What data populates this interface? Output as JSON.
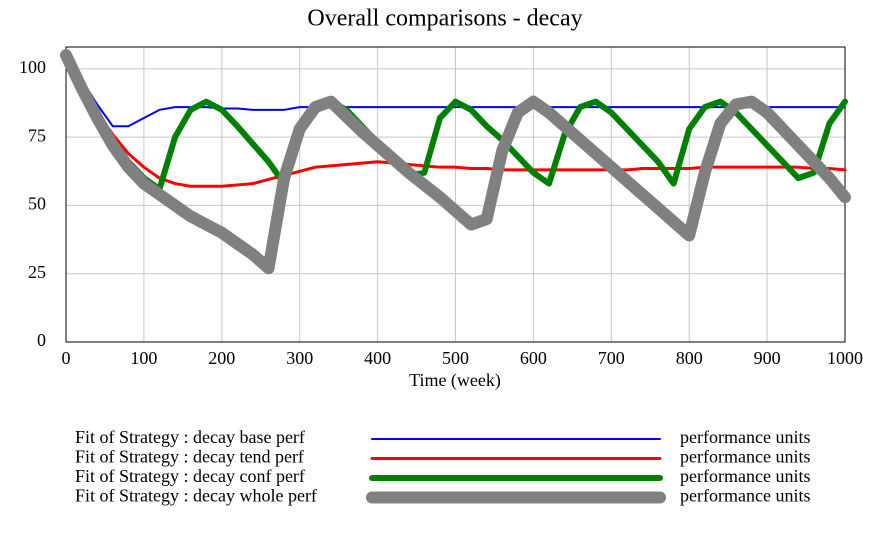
{
  "chart_data": {
    "type": "line",
    "title": "Overall comparisons - decay",
    "x_label": "Time (week)",
    "x": [
      0,
      20,
      40,
      60,
      80,
      100,
      120,
      140,
      160,
      180,
      200,
      220,
      240,
      260,
      280,
      300,
      320,
      340,
      360,
      380,
      400,
      420,
      440,
      460,
      480,
      500,
      520,
      540,
      560,
      580,
      600,
      620,
      640,
      660,
      680,
      700,
      720,
      740,
      760,
      780,
      800,
      820,
      840,
      860,
      880,
      900,
      920,
      940,
      960,
      980,
      1000
    ],
    "xlim": [
      0,
      1000
    ],
    "xticks": [
      0,
      100,
      200,
      300,
      400,
      500,
      600,
      700,
      800,
      900,
      1000
    ],
    "ylim": [
      0,
      108
    ],
    "yticks": [
      0,
      25,
      50,
      75,
      100
    ],
    "grid": true,
    "series": [
      {
        "name": "Fit of Strategy : decay base perf",
        "units": "performance units",
        "color": "#0000ff",
        "width": 2,
        "values": [
          105,
          96,
          87,
          79,
          79,
          82,
          85,
          86,
          86,
          86,
          85.5,
          85.5,
          85,
          85,
          85,
          86,
          86,
          86,
          86,
          86,
          86,
          86,
          86,
          86,
          86,
          86,
          86,
          86,
          86,
          86,
          86,
          86,
          86,
          86,
          86,
          86,
          86,
          86,
          86,
          86,
          86,
          86,
          86,
          86,
          86,
          86,
          86,
          86,
          86,
          86,
          86
        ]
      },
      {
        "name": "Fit of Strategy : decay tend perf",
        "units": "performance units",
        "color": "#ff0000",
        "width": 3,
        "values": [
          105,
          94,
          84,
          76,
          69,
          64,
          60,
          58,
          57,
          57,
          57,
          57.5,
          58,
          59.5,
          61,
          62.5,
          64,
          64.5,
          65,
          65.5,
          66,
          65.5,
          65,
          64.5,
          64,
          64,
          63.5,
          63.5,
          63,
          63,
          63,
          63,
          63,
          63,
          63,
          63,
          63,
          63.5,
          63.5,
          63.5,
          63.5,
          64,
          64,
          64,
          64,
          64,
          64,
          64,
          63.5,
          63.5,
          63
        ]
      },
      {
        "name": "Fit of Strategy : decay conf perf",
        "units": "performance units",
        "color": "#008000",
        "width": 6,
        "values": [
          105,
          94,
          83,
          74,
          66,
          60,
          56,
          75,
          85,
          88,
          85,
          79,
          72.5,
          66,
          58,
          78,
          86,
          88,
          85,
          79,
          73,
          67,
          61,
          62,
          82,
          88,
          85,
          79,
          74,
          68,
          62,
          58,
          76,
          86,
          88,
          84,
          78,
          72,
          66,
          58,
          78,
          86,
          88,
          84,
          78,
          72,
          66,
          60,
          62,
          80,
          88
        ]
      },
      {
        "name": "Fit of Strategy : decay whole perf",
        "units": "performance units",
        "color": "#808080",
        "width": 12,
        "values": [
          105,
          93,
          82,
          72,
          64,
          58,
          54,
          50,
          46,
          43,
          40,
          36,
          32,
          27,
          60,
          78,
          86,
          88,
          82.5,
          77,
          72,
          67,
          62,
          57.5,
          53,
          48,
          43,
          45,
          70,
          84,
          88,
          84,
          79,
          74,
          69,
          64,
          59,
          54,
          49,
          44,
          39,
          62,
          80,
          87,
          88,
          84,
          78,
          72,
          66,
          60,
          53
        ]
      }
    ]
  }
}
